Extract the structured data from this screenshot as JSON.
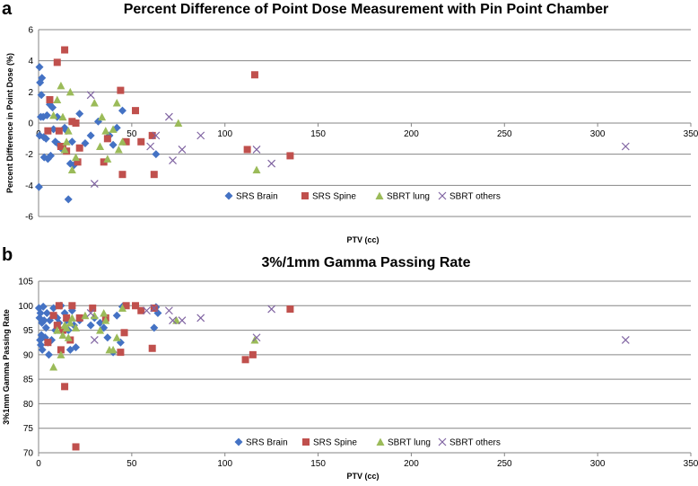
{
  "chart_data": [
    {
      "panel": "a",
      "type": "scatter",
      "title": "Percent Difference of Point Dose Measurement with Pin Point Chamber",
      "xlabel": "PTV (cc)",
      "ylabel": "Percent Difference in Point Dose (%)",
      "xlim": [
        0,
        350
      ],
      "ylim": [
        -6,
        6
      ],
      "xticks": [
        "0",
        "50",
        "100",
        "150",
        "200",
        "250",
        "300",
        "350"
      ],
      "yticks": [
        "-6",
        "-4",
        "-2",
        "0",
        "2",
        "4",
        "6"
      ],
      "grid": "horizontal",
      "legend_position": "bottom",
      "series": [
        {
          "name": "SRS Brain",
          "marker": "diamond",
          "color": "#4472C4",
          "x": [
            0.2,
            0.5,
            0.8,
            1.2,
            1.5,
            0.6,
            1.8,
            2.5,
            3.0,
            2.8,
            4.0,
            4.5,
            5.0,
            6.0,
            6.5,
            7.5,
            8.0,
            9.0,
            10.0,
            11.0,
            12.0,
            14.0,
            15.0,
            16.0,
            17.0,
            18.0,
            19.0,
            22.0,
            25.0,
            28.0,
            32.0,
            38.0,
            40.0,
            42.0,
            45.0,
            63.0
          ],
          "y": [
            -4.1,
            3.6,
            2.6,
            0.4,
            1.8,
            -0.8,
            2.9,
            0.4,
            -2.2,
            -0.9,
            -1.0,
            0.5,
            -2.3,
            1.2,
            -2.1,
            1.0,
            -0.4,
            -1.2,
            0.4,
            -1.4,
            -1.6,
            -0.3,
            -0.5,
            -4.9,
            -2.6,
            -1.2,
            -2.7,
            0.6,
            -1.3,
            -0.8,
            0.1,
            -0.8,
            -1.4,
            -0.3,
            0.8,
            -2.0
          ]
        },
        {
          "name": "SRS Spine",
          "marker": "square",
          "color": "#C0504D",
          "x": [
            5,
            6,
            10,
            11,
            12,
            13,
            14,
            15,
            18,
            20,
            21,
            22,
            35,
            37,
            44,
            45,
            47,
            52,
            55,
            61,
            62,
            112,
            116,
            135
          ],
          "y": [
            -0.5,
            1.5,
            3.9,
            -0.5,
            -1.5,
            -1.5,
            4.7,
            -1.8,
            0.1,
            0.0,
            -2.5,
            -1.6,
            -2.5,
            -1.0,
            2.1,
            -3.3,
            -1.2,
            0.8,
            -1.2,
            -0.8,
            -3.3,
            -1.7,
            3.1,
            -2.1
          ]
        },
        {
          "name": "SBRT lung",
          "marker": "triangle",
          "color": "#9BBB59",
          "x": [
            8,
            10,
            12,
            13,
            14,
            15,
            16,
            17,
            18,
            20,
            30,
            33,
            34,
            36,
            37,
            40,
            42,
            43,
            45,
            75,
            117
          ],
          "y": [
            0.5,
            1.5,
            2.4,
            0.4,
            -1.7,
            -1.2,
            -0.5,
            2.0,
            -3.0,
            -2.2,
            1.3,
            -1.5,
            0.4,
            -0.5,
            -2.3,
            -0.4,
            1.3,
            -1.7,
            -1.2,
            0.0,
            -3.0
          ]
        },
        {
          "name": "SBRT others",
          "marker": "cross",
          "color": "#8064A2",
          "x": [
            28,
            30,
            60,
            63,
            70,
            72,
            77,
            87,
            117,
            125,
            315
          ],
          "y": [
            1.8,
            -3.9,
            -1.5,
            -0.8,
            0.4,
            -2.4,
            -1.7,
            -0.8,
            -1.7,
            -2.6,
            -1.5
          ]
        }
      ]
    },
    {
      "panel": "b",
      "type": "scatter",
      "title": "3%/1mm Gamma Passing Rate",
      "xlabel": "PTV (cc)",
      "ylabel": "3%1mm Gamma Passing Rate",
      "xlim": [
        0,
        350
      ],
      "ylim": [
        70,
        105
      ],
      "xticks": [
        "0",
        "50",
        "100",
        "150",
        "200",
        "250",
        "300",
        "350"
      ],
      "yticks": [
        "70",
        "75",
        "80",
        "85",
        "90",
        "95",
        "100",
        "105"
      ],
      "grid": "horizontal",
      "legend_position": "bottom",
      "series": [
        {
          "name": "SRS Brain",
          "marker": "diamond",
          "color": "#4472C4",
          "x": [
            0.2,
            0.5,
            0.8,
            1.0,
            1.2,
            1.5,
            1.8,
            2.0,
            2.5,
            3.0,
            3.5,
            4.0,
            4.5,
            5.0,
            5.5,
            6.0,
            7.0,
            8.0,
            9.0,
            10,
            11,
            12,
            14,
            15,
            16,
            17,
            18,
            19,
            20,
            22,
            28,
            30,
            33,
            35,
            37,
            40,
            42,
            44,
            45,
            62,
            63,
            64
          ],
          "y": [
            99.5,
            97.5,
            93.0,
            98.5,
            92.0,
            94.0,
            96.5,
            91.0,
            99.8,
            97.0,
            93.5,
            95.5,
            98.5,
            92.5,
            90.0,
            97.0,
            93.0,
            99.5,
            95.0,
            97.5,
            96.5,
            100.0,
            98.5,
            97.0,
            95.0,
            91.0,
            99.0,
            96.0,
            91.5,
            97.0,
            96.0,
            97.5,
            96.5,
            95.5,
            93.5,
            90.5,
            98.0,
            92.5,
            99.8,
            95.5,
            99.7,
            98.5
          ]
        },
        {
          "name": "SRS Spine",
          "marker": "square",
          "color": "#C0504D",
          "x": [
            5,
            8,
            10,
            11,
            12,
            13,
            14,
            15,
            17,
            18,
            20,
            22,
            29,
            36,
            44,
            46,
            47,
            52,
            55,
            61,
            62,
            111,
            115,
            135
          ],
          "y": [
            92.5,
            98.0,
            96.0,
            100.0,
            91.0,
            95.0,
            83.5,
            97.5,
            93.0,
            100.0,
            71.2,
            97.5,
            99.5,
            97.5,
            90.5,
            94.5,
            100.0,
            100.0,
            99.0,
            91.3,
            99.5,
            89.0,
            90.0,
            99.3
          ]
        },
        {
          "name": "SBRT lung",
          "marker": "triangle",
          "color": "#9BBB59",
          "x": [
            8,
            10,
            12,
            13,
            14,
            15,
            16,
            17,
            18,
            20,
            25,
            30,
            33,
            35,
            36,
            38,
            40,
            42,
            45,
            74,
            116
          ],
          "y": [
            87.5,
            95.0,
            90.0,
            94.0,
            96.0,
            95.5,
            93.5,
            96.5,
            97.5,
            95.5,
            98.0,
            98.0,
            95.0,
            98.5,
            97.0,
            91.0,
            91.0,
            93.5,
            99.5,
            97.0,
            93.0
          ]
        },
        {
          "name": "SBRT others",
          "marker": "cross",
          "color": "#8064A2",
          "x": [
            28,
            30,
            58,
            62,
            70,
            72,
            77,
            87,
            117,
            125,
            315
          ],
          "y": [
            98.5,
            93.0,
            99.0,
            99.5,
            99.0,
            97.0,
            97.0,
            97.5,
            93.5,
            99.3,
            93.0
          ]
        }
      ]
    }
  ]
}
